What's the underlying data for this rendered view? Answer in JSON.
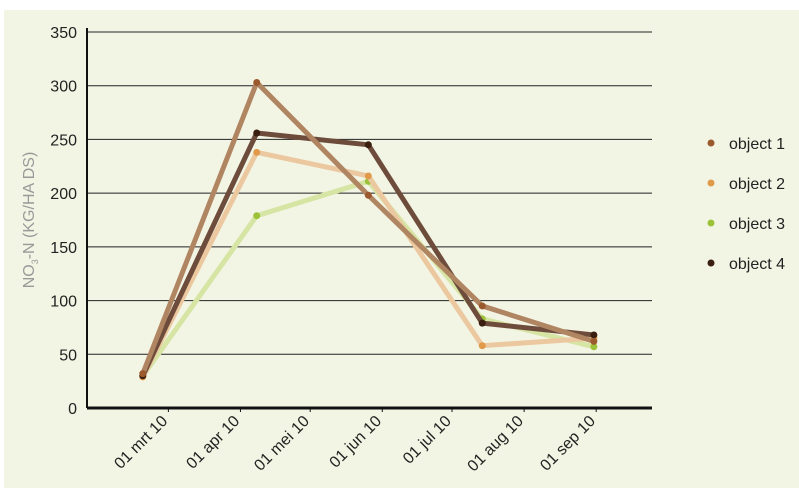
{
  "chart_data": {
    "type": "line",
    "y_label": {
      "parts": [
        "NO",
        "3",
        "-N (KG/HA DS)"
      ]
    },
    "x": [
      "2010-02-18",
      "2010-04-08",
      "2010-05-26",
      "2010-07-14",
      "2010-08-31"
    ],
    "xlim": [
      "2010-01-25",
      "2010-09-25"
    ],
    "xticks": [
      {
        "value": "2010-03-01",
        "label": "01 mrt 10"
      },
      {
        "value": "2010-04-01",
        "label": "01 apr 10"
      },
      {
        "value": "2010-05-01",
        "label": "01 mei 10"
      },
      {
        "value": "2010-06-01",
        "label": "01 jun 10"
      },
      {
        "value": "2010-07-01",
        "label": "01 jul 10"
      },
      {
        "value": "2010-08-01",
        "label": "01 aug 10"
      },
      {
        "value": "2010-09-01",
        "label": "01 sep 10"
      }
    ],
    "ylim": [
      0,
      350
    ],
    "yticks": [
      0,
      50,
      100,
      150,
      200,
      250,
      300,
      350
    ],
    "grid": true,
    "legend": "right",
    "series": [
      {
        "name": "object 3",
        "color": "#9cc23a",
        "line_color": "#d6e4a4",
        "values": [
          30,
          179,
          211,
          83,
          57
        ]
      },
      {
        "name": "object 2",
        "color": "#e09a4a",
        "line_color": "#ebc89f",
        "values": [
          29,
          238,
          216,
          58,
          65
        ]
      },
      {
        "name": "object 4",
        "color": "#3a1e10",
        "line_color": "#6e4c3c",
        "values": [
          30,
          256,
          245,
          79,
          68
        ]
      },
      {
        "name": "object 1",
        "color": "#9a5a2e",
        "line_color": "#b08562",
        "values": [
          32,
          303,
          198,
          95,
          62
        ]
      }
    ],
    "legend_order": [
      3,
      1,
      0,
      2
    ]
  }
}
